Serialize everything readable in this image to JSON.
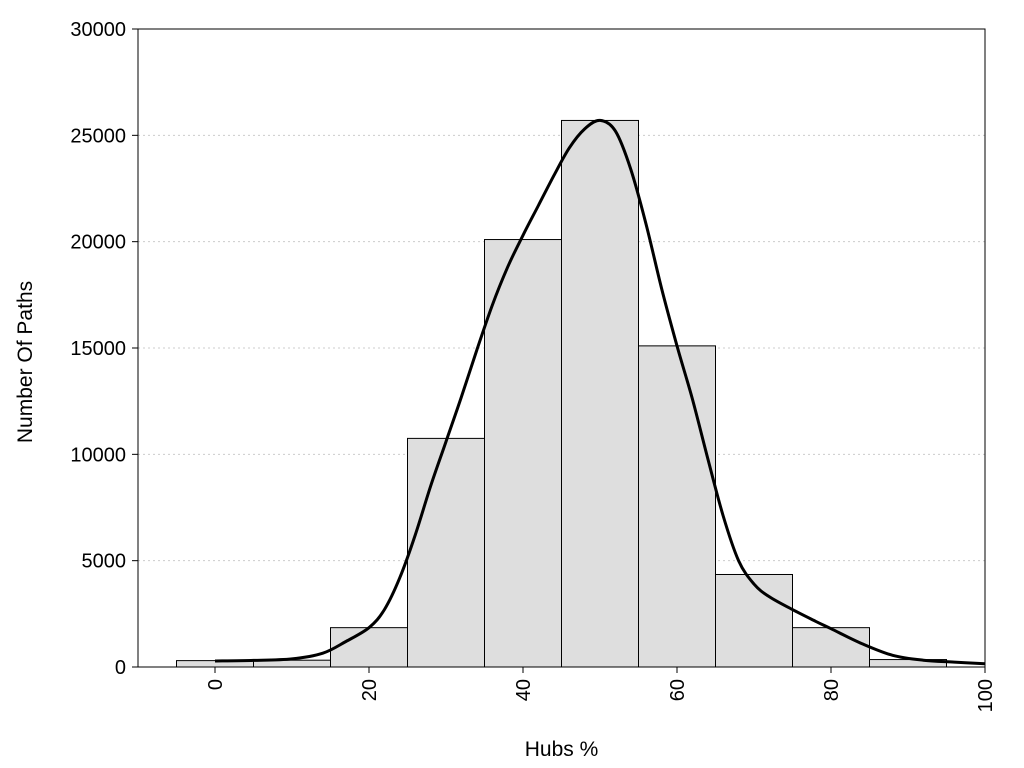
{
  "chart_data": {
    "type": "bar",
    "title": "",
    "xlabel": "Hubs %",
    "ylabel": "Number Of Paths",
    "xlim": [
      -10,
      100
    ],
    "ylim": [
      0,
      30000
    ],
    "x_ticks": [
      "0",
      "20",
      "40",
      "60",
      "80",
      "100"
    ],
    "y_ticks": [
      "0",
      "5000",
      "10000",
      "15000",
      "20000",
      "25000",
      "30000"
    ],
    "grid": "horizontal dotted",
    "legend": "none",
    "bins": [
      {
        "start": -5,
        "end": 5,
        "value": 300
      },
      {
        "start": 5,
        "end": 15,
        "value": 320
      },
      {
        "start": 15,
        "end": 25,
        "value": 1850
      },
      {
        "start": 25,
        "end": 35,
        "value": 10750
      },
      {
        "start": 35,
        "end": 45,
        "value": 20100
      },
      {
        "start": 45,
        "end": 55,
        "value": 25700
      },
      {
        "start": 55,
        "end": 65,
        "value": 15100
      },
      {
        "start": 65,
        "end": 75,
        "value": 4350
      },
      {
        "start": 75,
        "end": 85,
        "value": 1850
      },
      {
        "start": 85,
        "end": 95,
        "value": 350
      }
    ],
    "density_curve": {
      "x": [
        0,
        5,
        10,
        14,
        17,
        20,
        22,
        24,
        26,
        28,
        30,
        32,
        34,
        36,
        38,
        40,
        42,
        44,
        46,
        48,
        50,
        52,
        54,
        56,
        58,
        60,
        62,
        64,
        66,
        68,
        70,
        72,
        75,
        78,
        80,
        84,
        88,
        92,
        96,
        100
      ],
      "y": [
        280,
        310,
        380,
        650,
        1200,
        1850,
        2700,
        4200,
        6200,
        8500,
        10600,
        12700,
        14900,
        17000,
        18800,
        20300,
        21700,
        23100,
        24400,
        25300,
        25700,
        25200,
        23400,
        20800,
        17800,
        15100,
        12600,
        9800,
        7100,
        5000,
        3900,
        3300,
        2700,
        2150,
        1800,
        1100,
        550,
        320,
        230,
        150
      ]
    },
    "colors": {
      "bar_fill": "#dedede",
      "bar_stroke": "#000000",
      "curve": "#000000",
      "grid": "#cccccc"
    }
  }
}
